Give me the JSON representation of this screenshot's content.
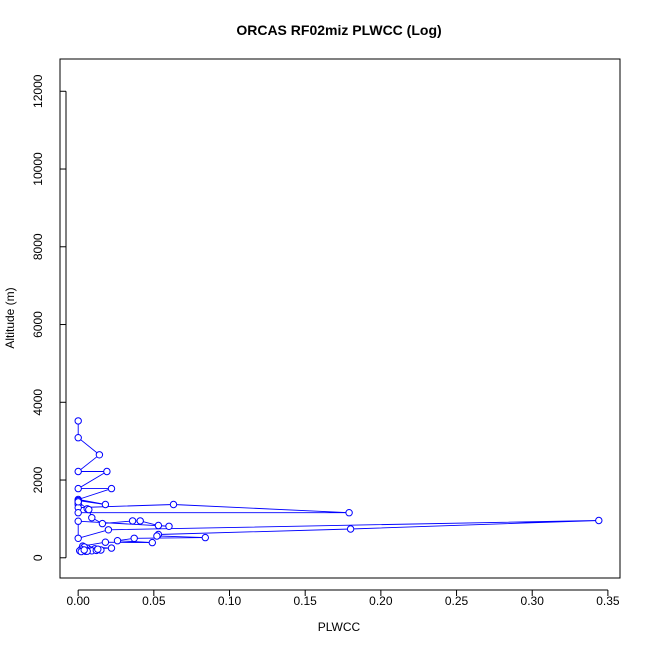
{
  "chart_data": {
    "type": "line",
    "title": "ORCAS RF02miz PLWCC (Log)",
    "xlabel": "PLWCC",
    "ylabel": "Altitude (m)",
    "xlim": [
      -0.012,
      0.358
    ],
    "ylim": [
      -520,
      12830
    ],
    "xticks": [
      0.0,
      0.05,
      0.1,
      0.15,
      0.2,
      0.25,
      0.3,
      0.35
    ],
    "xtick_labels": [
      "0.00",
      "0.05",
      "0.10",
      "0.15",
      "0.20",
      "0.25",
      "0.30",
      "0.35"
    ],
    "yticks": [
      0,
      2000,
      4000,
      6000,
      8000,
      10000,
      12000
    ],
    "ytick_labels": [
      "0",
      "2000",
      "4000",
      "6000",
      "8000",
      "10000",
      "12000"
    ],
    "grid": false,
    "series": [
      {
        "color": "#0000ff",
        "marker": "open-circle",
        "x": [
          0.0,
          0.0,
          0.014,
          0.0,
          0.019,
          0.0,
          0.022,
          0.0,
          0.018,
          0.0,
          0.0,
          0.0,
          0.0,
          0.063,
          0.179,
          0.0,
          0.0,
          0.006,
          0.007,
          0.009,
          0.016,
          0.036,
          0.041,
          0.053,
          0.06,
          0.0,
          0.0,
          0.02,
          0.344,
          0.18,
          0.053,
          0.052,
          0.084,
          0.037,
          0.026,
          0.049,
          0.018,
          0.003,
          0.006,
          0.004,
          0.022,
          0.002,
          0.008,
          0.011,
          0.001,
          0.005,
          0.015,
          0.009,
          0.002,
          0.012,
          0.006,
          0.013,
          0.004
        ],
        "y": [
          3520,
          3090,
          2650,
          2220,
          2220,
          1780,
          1780,
          1500,
          1370,
          1470,
          1420,
          1370,
          1290,
          1370,
          1160,
          1160,
          1440,
          1260,
          1240,
          1030,
          880,
          950,
          950,
          830,
          810,
          940,
          500,
          720,
          960,
          740,
          600,
          560,
          520,
          500,
          440,
          390,
          400,
          300,
          250,
          280,
          250,
          220,
          200,
          230,
          180,
          170,
          200,
          180,
          160,
          190,
          170,
          220,
          200
        ]
      }
    ]
  }
}
